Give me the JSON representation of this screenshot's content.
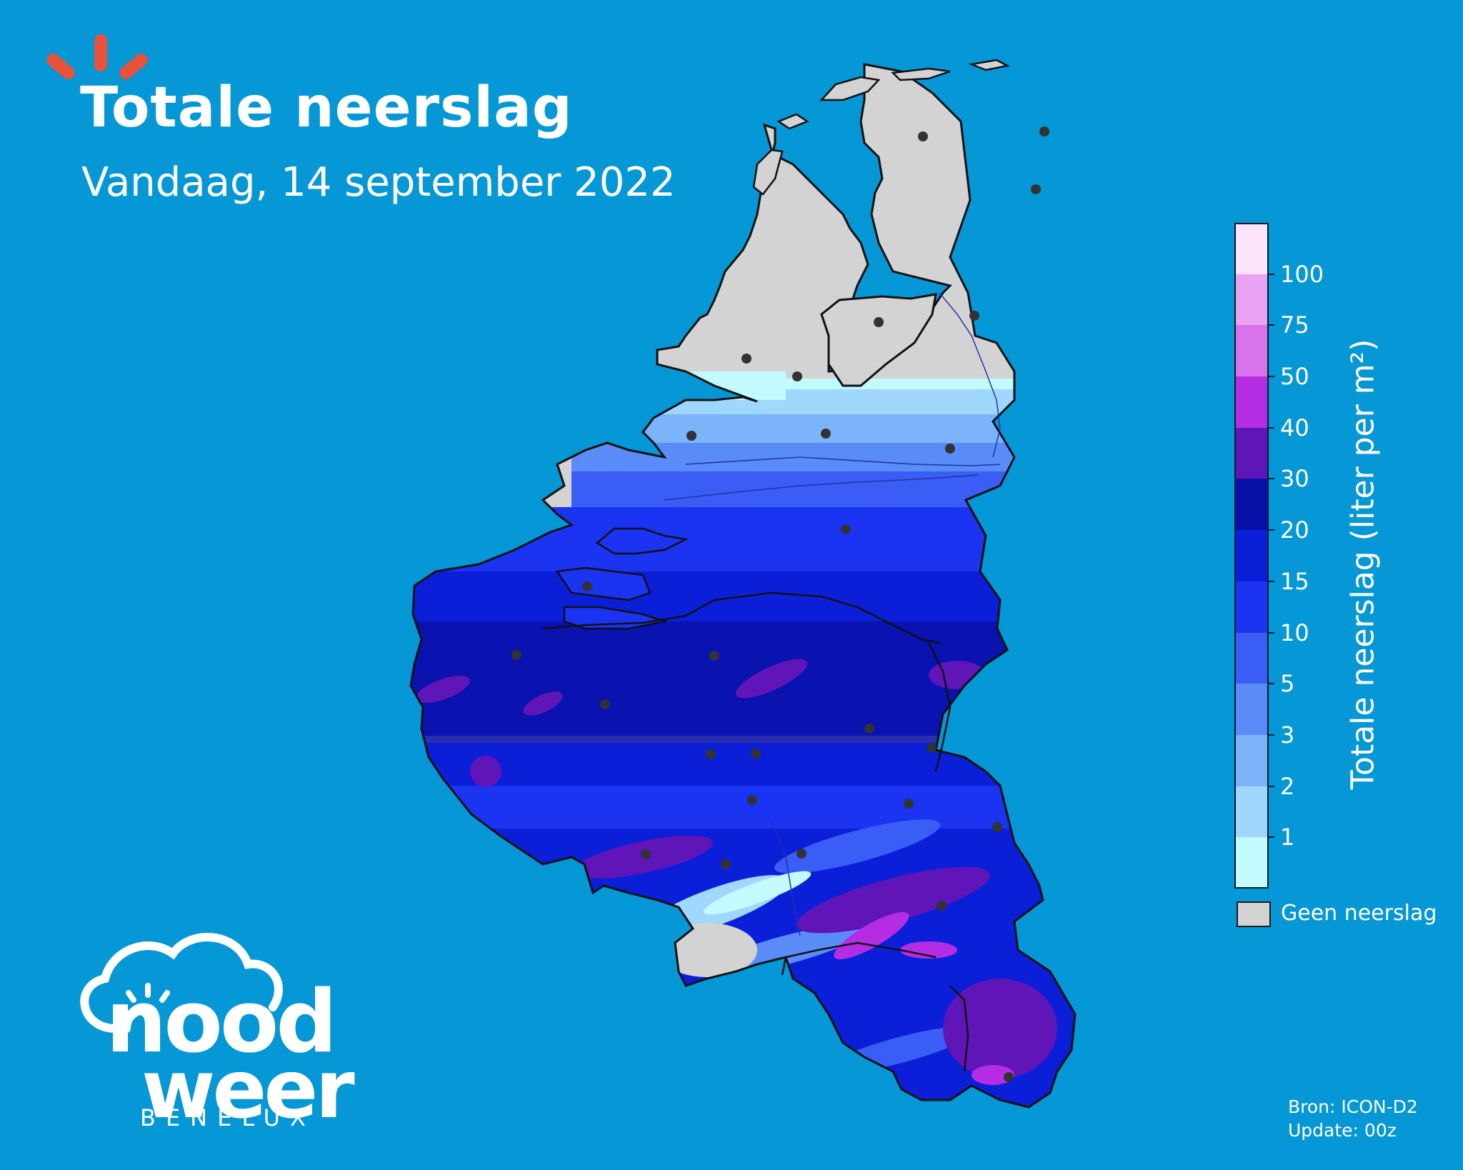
{
  "header": {
    "title": "Totale neerslag",
    "subtitle": "Vandaag, 14 september 2022"
  },
  "legend": {
    "axis_label": "Totale neerslag (liter per m²)",
    "tick_labels": [
      "1",
      "2",
      "3",
      "5",
      "10",
      "15",
      "20",
      "30",
      "40",
      "50",
      "75",
      "100"
    ],
    "colors_bottom_to_top": [
      "#c2fafe",
      "#a0d8fd",
      "#7cb4fb",
      "#5a8cf8",
      "#3a5df5",
      "#1a34f2",
      "#0b1fd8",
      "#0a11a8",
      "#6015b8",
      "#b52de2",
      "#d873eb",
      "#e9a3f2",
      "#fde4fd"
    ],
    "no_precip_color": "#d3d3d3",
    "no_precip_label": "Geen neerslag"
  },
  "source": {
    "line1": "Bron: ICON-D2",
    "line2": "Update: 00z"
  },
  "brand": {
    "line1": "nood",
    "line2": "weer",
    "sub": "BENELUX",
    "ray_color": "#e8513a"
  },
  "map": {
    "background": "#0597d6",
    "land_no_precip": "#d3d3d3",
    "border_color": "#111111",
    "city_marker_color": "#333333",
    "city_markers": 31
  }
}
